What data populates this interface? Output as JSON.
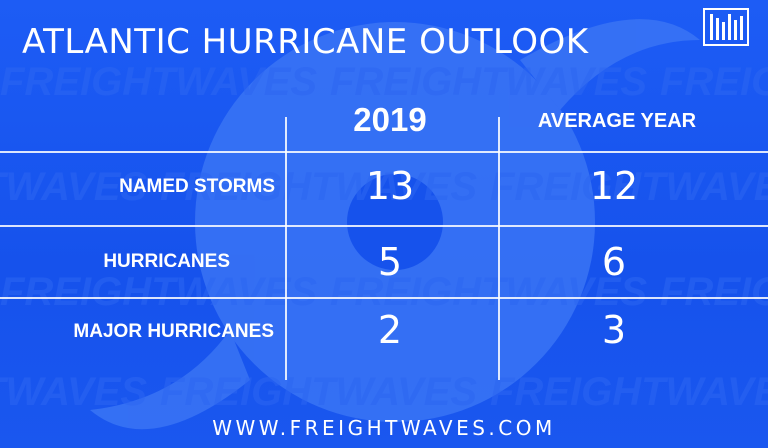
{
  "title": "ATLANTIC HURRICANE OUTLOOK",
  "footer": "WWW.FREIGHTWAVES.COM",
  "logo_icon": "freightwaves-logo-icon",
  "watermark_text": "FREIGHTWAVES",
  "colors": {
    "background": "#1652ec",
    "watermark": "#3a74f5",
    "text": "#ffffff"
  },
  "chart_data": {
    "type": "table",
    "title": "ATLANTIC HURRICANE OUTLOOK",
    "columns": [
      "2019",
      "AVERAGE YEAR"
    ],
    "rows": [
      {
        "label": "NAMED STORMS",
        "values": [
          "13",
          "12"
        ]
      },
      {
        "label": "HURRICANES",
        "values": [
          "5",
          "6"
        ]
      },
      {
        "label": "MAJOR HURRICANES",
        "values": [
          "2",
          "3"
        ]
      }
    ]
  }
}
